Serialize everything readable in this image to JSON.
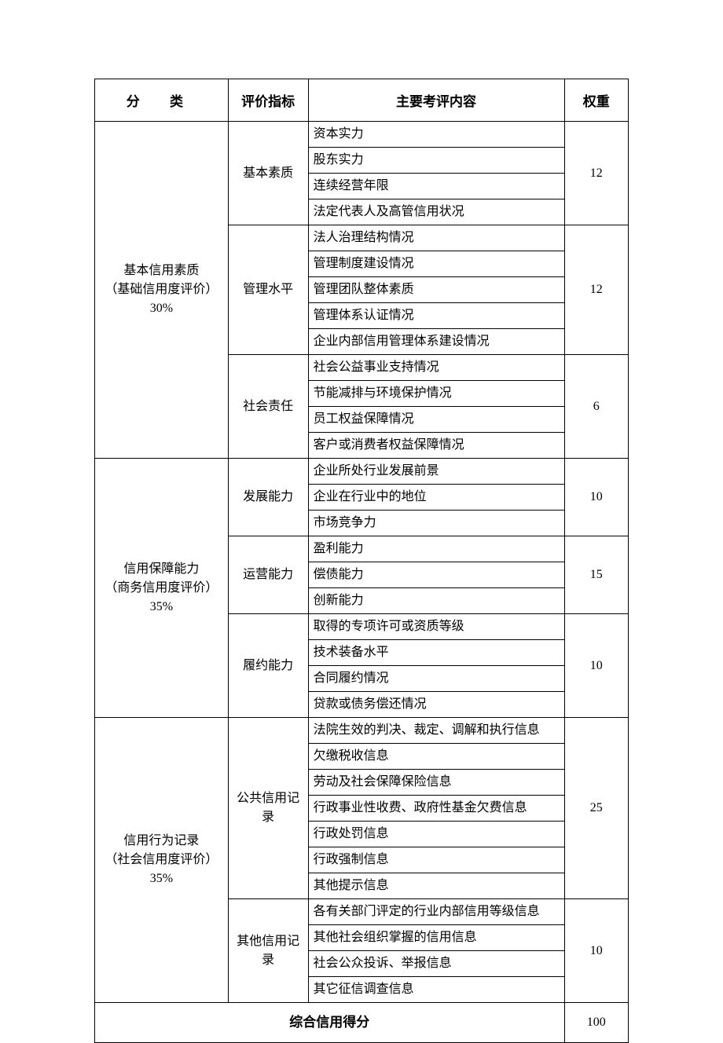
{
  "table": {
    "headers": {
      "category": "分  类",
      "indicator": "评价指标",
      "content": "主要考评内容",
      "weight": "权重"
    },
    "footer": {
      "label": "综合信用得分",
      "total": "100"
    },
    "categories": [
      {
        "title_l1": "基本信用素质",
        "title_l2": "（基础信用度评价）",
        "title_l3": "30%",
        "groups": [
          {
            "indicator": "基本素质",
            "weight": "12",
            "items": [
              "资本实力",
              "股东实力",
              "连续经营年限",
              "法定代表人及高管信用状况"
            ]
          },
          {
            "indicator": "管理水平",
            "weight": "12",
            "items": [
              "法人治理结构情况",
              "管理制度建设情况",
              "管理团队整体素质",
              "管理体系认证情况",
              "企业内部信用管理体系建设情况"
            ]
          },
          {
            "indicator": "社会责任",
            "weight": "6",
            "items": [
              "社会公益事业支持情况",
              "节能减排与环境保护情况",
              "员工权益保障情况",
              "客户或消费者权益保障情况"
            ]
          }
        ]
      },
      {
        "title_l1": "信用保障能力",
        "title_l2": "（商务信用度评价）",
        "title_l3": "35%",
        "groups": [
          {
            "indicator": "发展能力",
            "weight": "10",
            "items": [
              "企业所处行业发展前景",
              "企业在行业中的地位",
              "市场竞争力"
            ]
          },
          {
            "indicator": "运营能力",
            "weight": "15",
            "items": [
              "盈利能力",
              "偿债能力",
              "创新能力"
            ]
          },
          {
            "indicator": "履约能力",
            "weight": "10",
            "items": [
              "取得的专项许可或资质等级",
              "技术装备水平",
              "合同履约情况",
              "贷款或债务偿还情况"
            ]
          }
        ]
      },
      {
        "title_l1": "信用行为记录",
        "title_l2": "（社会信用度评价）",
        "title_l3": "35%",
        "groups": [
          {
            "indicator": "公共信用记录",
            "weight": "25",
            "items": [
              "法院生效的判决、裁定、调解和执行信息",
              "欠缴税收信息",
              "劳动及社会保障保险信息",
              "行政事业性收费、政府性基金欠费信息",
              "行政处罚信息",
              "行政强制信息",
              "其他提示信息"
            ]
          },
          {
            "indicator": "其他信用记录",
            "weight": "10",
            "items": [
              "各有关部门评定的行业内部信用等级信息",
              "其他社会组织掌握的信用信息",
              "社会公众投诉、举报信息",
              "其它征信调查信息"
            ]
          }
        ]
      }
    ]
  },
  "style": {
    "border_color": "#000000",
    "text_color": "#000000",
    "background_color": "#ffffff",
    "font_family": "SimSun",
    "header_fontsize_pt": 13,
    "body_fontsize_pt": 12,
    "column_widths_pct": [
      25,
      15,
      48,
      12
    ]
  }
}
